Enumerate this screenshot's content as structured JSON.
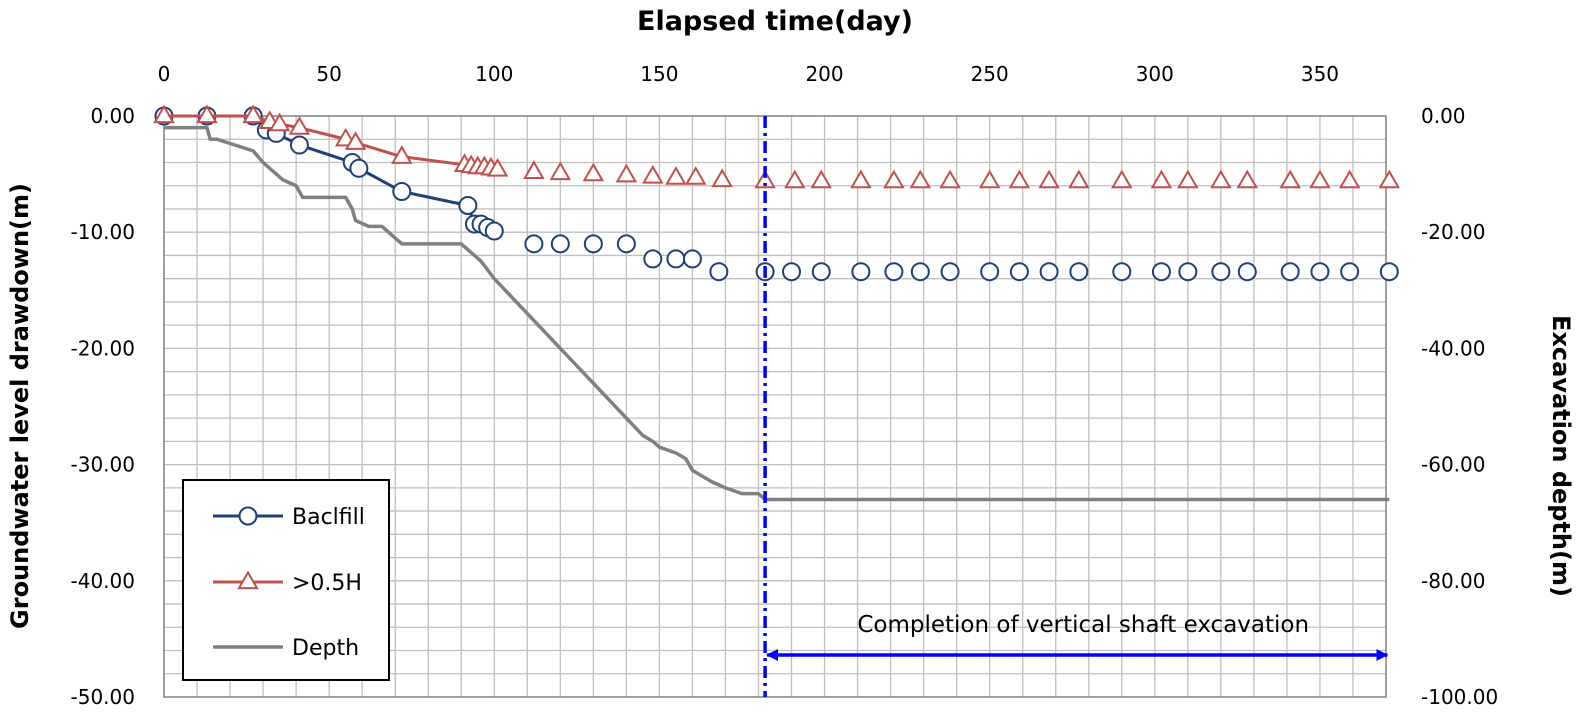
{
  "chart_data": {
    "type": "line",
    "title": "",
    "xlabel": "Elapsed time(day)",
    "ylabel_left": "Groundwater level drawdown(m)",
    "ylabel_right": "Excavation depth(m)",
    "xlim": [
      0,
      370
    ],
    "ylim_left": [
      -50,
      0
    ],
    "ylim_right": [
      -100,
      0
    ],
    "x_ticks": [
      "0",
      "50",
      "100",
      "150",
      "200",
      "250",
      "300",
      "350"
    ],
    "y_left_ticks": [
      "0.00",
      "-10.00",
      "-20.00",
      "-30.00",
      "-40.00",
      "-50.00"
    ],
    "y_right_ticks": [
      "0.00",
      "-20.00",
      "-40.00",
      "-60.00",
      "-80.00",
      "-100.00"
    ],
    "grid": true,
    "legend_position": "bottom-left",
    "series": [
      {
        "name": "Baclfill",
        "axis": "left",
        "marker": "circle",
        "color": "#1f3f7a",
        "line_until": 100,
        "x": [
          0,
          13,
          27,
          31,
          34,
          41,
          57,
          59,
          72,
          92,
          94,
          96,
          98,
          100,
          112,
          120,
          130,
          140,
          148,
          155,
          160,
          168,
          182,
          190,
          199,
          211,
          221,
          229,
          238,
          250,
          259,
          268,
          277,
          290,
          302,
          310,
          320,
          328,
          341,
          350,
          359,
          371
        ],
        "y": [
          0,
          0,
          0,
          -1.2,
          -1.5,
          -2.5,
          -4.0,
          -4.5,
          -6.5,
          -7.7,
          -9.3,
          -9.3,
          -9.6,
          -9.9,
          -11.0,
          -11.0,
          -11.0,
          -11.0,
          -12.3,
          -12.3,
          -12.3,
          -13.4,
          -13.4,
          -13.4,
          -13.4,
          -13.4,
          -13.4,
          -13.4,
          -13.4,
          -13.4,
          -13.4,
          -13.4,
          -13.4,
          -13.4,
          -13.4,
          -13.4,
          -13.4,
          -13.4,
          -13.4,
          -13.4,
          -13.4,
          -13.4
        ]
      },
      {
        "name": ">0.5H",
        "axis": "left",
        "marker": "triangle",
        "color": "#c0504d",
        "line_until": 100,
        "x": [
          0,
          13,
          27,
          32,
          35,
          41,
          55,
          58,
          72,
          91,
          93,
          95,
          97,
          99,
          101,
          112,
          120,
          130,
          140,
          148,
          155,
          161,
          169,
          182,
          191,
          199,
          211,
          221,
          229,
          238,
          250,
          259,
          268,
          277,
          290,
          302,
          310,
          320,
          328,
          341,
          350,
          359,
          371
        ],
        "y": [
          0,
          0,
          0,
          -0.5,
          -0.7,
          -1.0,
          -2.0,
          -2.3,
          -3.5,
          -4.2,
          -4.3,
          -4.4,
          -4.4,
          -4.5,
          -4.6,
          -4.8,
          -4.9,
          -5.0,
          -5.1,
          -5.2,
          -5.3,
          -5.3,
          -5.5,
          -5.6,
          -5.6,
          -5.6,
          -5.6,
          -5.6,
          -5.6,
          -5.6,
          -5.6,
          -5.6,
          -5.6,
          -5.6,
          -5.6,
          -5.6,
          -5.6,
          -5.6,
          -5.6,
          -5.6,
          -5.6,
          -5.6,
          -5.6
        ]
      },
      {
        "name": "Depth",
        "axis": "right",
        "marker": "none",
        "color": "#808080",
        "x": [
          0,
          1,
          13,
          14,
          16,
          27,
          30,
          32,
          34,
          36,
          40,
          42,
          44,
          48,
          52,
          55,
          57,
          58,
          62,
          64,
          66,
          70,
          72,
          74,
          78,
          85,
          90,
          92,
          94,
          96,
          100,
          105,
          110,
          115,
          120,
          125,
          130,
          135,
          140,
          145,
          148,
          150,
          155,
          158,
          160,
          163,
          166,
          170,
          175,
          180,
          182,
          200,
          220,
          250,
          300,
          350,
          371
        ],
        "y": [
          -2,
          -2,
          -2,
          -4,
          -4,
          -6,
          -8,
          -9,
          -10,
          -11,
          -12,
          -14,
          -14,
          -14,
          -14,
          -14,
          -16,
          -18,
          -19,
          -19,
          -19,
          -21,
          -22,
          -22,
          -22,
          -22,
          -22,
          -23,
          -24,
          -25,
          -28,
          -31,
          -34,
          -37,
          -40,
          -43,
          -46,
          -49,
          -52,
          -55,
          -56,
          -57,
          -58,
          -59,
          -61,
          -62,
          -63,
          -64,
          -65,
          -65,
          -66,
          -66,
          -66,
          -66,
          -66,
          -66,
          -66
        ]
      }
    ],
    "annotation": {
      "vline_x": 182,
      "arrow_from": 182,
      "arrow_to": 371,
      "text": "Completion of vertical shaft excavation",
      "color": "#0000ff"
    }
  }
}
